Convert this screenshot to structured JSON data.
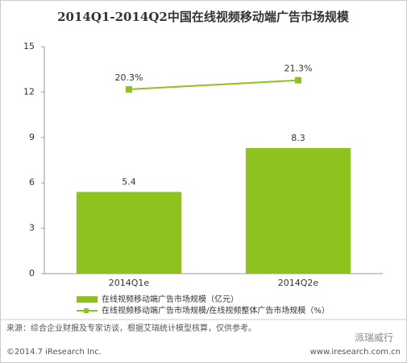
{
  "chart_data": {
    "type": "bar",
    "title": "2014Q1-2014Q2中国在线视频移动端广告市场规模",
    "categories": [
      "2014Q1e",
      "2014Q2e"
    ],
    "series": [
      {
        "name": "在线视频移动端广告市场规模（亿元）",
        "type": "bar",
        "color": "#8dc21f",
        "values": [
          5.4,
          8.3
        ]
      },
      {
        "name": "在线视频移动端广告市场规模/在线视频整体广告市场规模（%）",
        "type": "line",
        "axis": "y2",
        "color": "#8dc21f",
        "values": [
          20.3,
          21.3
        ],
        "value_labels": [
          "20.3%",
          "21.3%"
        ]
      }
    ],
    "ylim": [
      0,
      15
    ],
    "yticks": [
      0,
      3,
      6,
      9,
      12,
      15
    ],
    "y2lim": [
      0,
      25
    ],
    "grid": false
  },
  "footer": {
    "source": "来源：综合企业财报及专家访谈，根据艾瑞统计模型核算，仅供参考。",
    "copyright": "©2014.7 iResearch Inc.",
    "website": "www.iresearch.com.cn",
    "watermark": "派瑞威行"
  }
}
